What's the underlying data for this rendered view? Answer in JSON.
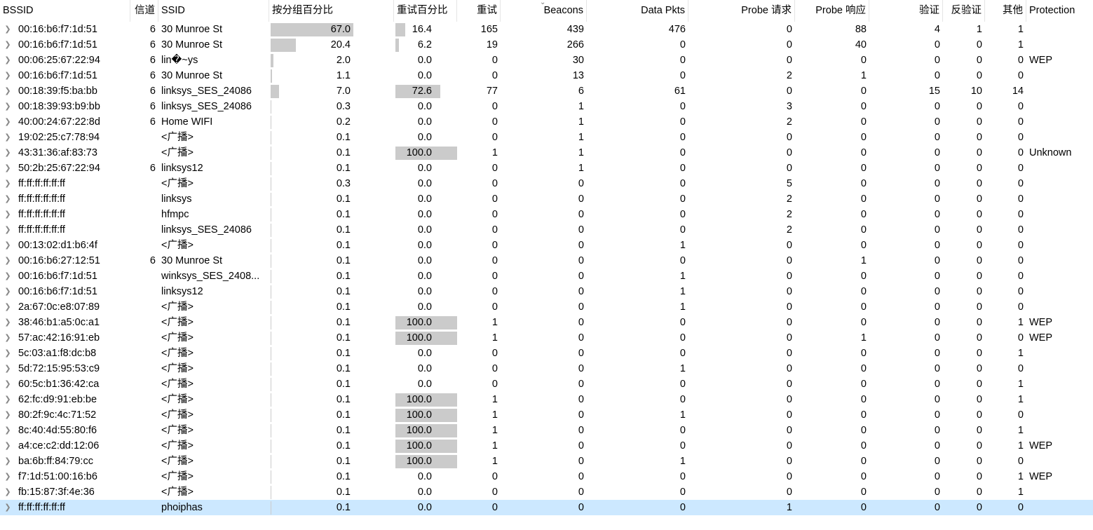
{
  "header": {
    "bssid": "BSSID",
    "channel": "信道",
    "ssid": "SSID",
    "pct_packets": "按分组百分比",
    "pct_retry": "重试百分比",
    "retry": "重试",
    "beacons": "Beacons",
    "data_pkts": "Data Pkts",
    "probe_req": "Probe 请求",
    "probe_resp": "Probe 响应",
    "auth": "验证",
    "deauth": "反验证",
    "other": "其他",
    "protection": "Protection"
  },
  "rows": [
    {
      "bssid": "00:16:b6:f7:1d:51",
      "ch": "6",
      "ssid": "30 Munroe St",
      "pkt": "67.0",
      "retry_pct": "16.4",
      "retry": "165",
      "beacons": "439",
      "data": "476",
      "preq": "0",
      "presp": "88",
      "auth": "4",
      "deauth": "1",
      "other": "1",
      "prot": "",
      "pkt_v": 67.0,
      "retry_v": 16.4
    },
    {
      "bssid": "00:16:b6:f7:1d:51",
      "ch": "6",
      "ssid": "30 Munroe St",
      "pkt": "20.4",
      "retry_pct": "6.2",
      "retry": "19",
      "beacons": "266",
      "data": "0",
      "preq": "0",
      "presp": "40",
      "auth": "0",
      "deauth": "0",
      "other": "1",
      "prot": "",
      "pkt_v": 20.4,
      "retry_v": 6.2
    },
    {
      "bssid": "00:06:25:67:22:94",
      "ch": "6",
      "ssid": "lin�~ys",
      "pkt": "2.0",
      "retry_pct": "0.0",
      "retry": "0",
      "beacons": "30",
      "data": "0",
      "preq": "0",
      "presp": "0",
      "auth": "0",
      "deauth": "0",
      "other": "0",
      "prot": "WEP",
      "pkt_v": 2.0,
      "retry_v": 0
    },
    {
      "bssid": "00:16:b6:f7:1d:51",
      "ch": "6",
      "ssid": "30 Munroe St",
      "pkt": "1.1",
      "retry_pct": "0.0",
      "retry": "0",
      "beacons": "13",
      "data": "0",
      "preq": "2",
      "presp": "1",
      "auth": "0",
      "deauth": "0",
      "other": "0",
      "prot": "",
      "pkt_v": 1.1,
      "retry_v": 0
    },
    {
      "bssid": "00:18:39:f5:ba:bb",
      "ch": "6",
      "ssid": "linksys_SES_24086",
      "pkt": "7.0",
      "retry_pct": "72.6",
      "retry": "77",
      "beacons": "6",
      "data": "61",
      "preq": "0",
      "presp": "0",
      "auth": "15",
      "deauth": "10",
      "other": "14",
      "prot": "",
      "pkt_v": 7.0,
      "retry_v": 72.6
    },
    {
      "bssid": "00:18:39:93:b9:bb",
      "ch": "6",
      "ssid": "linksys_SES_24086",
      "pkt": "0.3",
      "retry_pct": "0.0",
      "retry": "0",
      "beacons": "1",
      "data": "0",
      "preq": "3",
      "presp": "0",
      "auth": "0",
      "deauth": "0",
      "other": "0",
      "prot": "",
      "pkt_v": 0.3,
      "retry_v": 0
    },
    {
      "bssid": "40:00:24:67:22:8d",
      "ch": "6",
      "ssid": "Home WIFI",
      "pkt": "0.2",
      "retry_pct": "0.0",
      "retry": "0",
      "beacons": "1",
      "data": "0",
      "preq": "2",
      "presp": "0",
      "auth": "0",
      "deauth": "0",
      "other": "0",
      "prot": "",
      "pkt_v": 0.2,
      "retry_v": 0
    },
    {
      "bssid": "19:02:25:c7:78:94",
      "ch": "",
      "ssid": "<广播>",
      "pkt": "0.1",
      "retry_pct": "0.0",
      "retry": "0",
      "beacons": "1",
      "data": "0",
      "preq": "0",
      "presp": "0",
      "auth": "0",
      "deauth": "0",
      "other": "0",
      "prot": "",
      "pkt_v": 0.1,
      "retry_v": 0
    },
    {
      "bssid": "43:31:36:af:83:73",
      "ch": "",
      "ssid": "<广播>",
      "pkt": "0.1",
      "retry_pct": "100.0",
      "retry": "1",
      "beacons": "1",
      "data": "0",
      "preq": "0",
      "presp": "0",
      "auth": "0",
      "deauth": "0",
      "other": "0",
      "prot": "Unknown",
      "pkt_v": 0.1,
      "retry_v": 100
    },
    {
      "bssid": "50:2b:25:67:22:94",
      "ch": "6",
      "ssid": "linksys12",
      "pkt": "0.1",
      "retry_pct": "0.0",
      "retry": "0",
      "beacons": "1",
      "data": "0",
      "preq": "0",
      "presp": "0",
      "auth": "0",
      "deauth": "0",
      "other": "0",
      "prot": "",
      "pkt_v": 0.1,
      "retry_v": 0
    },
    {
      "bssid": "ff:ff:ff:ff:ff:ff",
      "ch": "",
      "ssid": "<广播>",
      "pkt": "0.3",
      "retry_pct": "0.0",
      "retry": "0",
      "beacons": "0",
      "data": "0",
      "preq": "5",
      "presp": "0",
      "auth": "0",
      "deauth": "0",
      "other": "0",
      "prot": "",
      "pkt_v": 0.3,
      "retry_v": 0
    },
    {
      "bssid": "ff:ff:ff:ff:ff:ff",
      "ch": "",
      "ssid": "linksys",
      "pkt": "0.1",
      "retry_pct": "0.0",
      "retry": "0",
      "beacons": "0",
      "data": "0",
      "preq": "2",
      "presp": "0",
      "auth": "0",
      "deauth": "0",
      "other": "0",
      "prot": "",
      "pkt_v": 0.1,
      "retry_v": 0
    },
    {
      "bssid": "ff:ff:ff:ff:ff:ff",
      "ch": "",
      "ssid": "hfmpc",
      "pkt": "0.1",
      "retry_pct": "0.0",
      "retry": "0",
      "beacons": "0",
      "data": "0",
      "preq": "2",
      "presp": "0",
      "auth": "0",
      "deauth": "0",
      "other": "0",
      "prot": "",
      "pkt_v": 0.1,
      "retry_v": 0
    },
    {
      "bssid": "ff:ff:ff:ff:ff:ff",
      "ch": "",
      "ssid": "linksys_SES_24086",
      "pkt": "0.1",
      "retry_pct": "0.0",
      "retry": "0",
      "beacons": "0",
      "data": "0",
      "preq": "2",
      "presp": "0",
      "auth": "0",
      "deauth": "0",
      "other": "0",
      "prot": "",
      "pkt_v": 0.1,
      "retry_v": 0
    },
    {
      "bssid": "00:13:02:d1:b6:4f",
      "ch": "",
      "ssid": "<广播>",
      "pkt": "0.1",
      "retry_pct": "0.0",
      "retry": "0",
      "beacons": "0",
      "data": "1",
      "preq": "0",
      "presp": "0",
      "auth": "0",
      "deauth": "0",
      "other": "0",
      "prot": "",
      "pkt_v": 0.1,
      "retry_v": 0
    },
    {
      "bssid": "00:16:b6:27:12:51",
      "ch": "6",
      "ssid": "30 Munroe St",
      "pkt": "0.1",
      "retry_pct": "0.0",
      "retry": "0",
      "beacons": "0",
      "data": "0",
      "preq": "0",
      "presp": "1",
      "auth": "0",
      "deauth": "0",
      "other": "0",
      "prot": "",
      "pkt_v": 0.1,
      "retry_v": 0
    },
    {
      "bssid": "00:16:b6:f7:1d:51",
      "ch": "",
      "ssid": "winksys_SES_2408...",
      "pkt": "0.1",
      "retry_pct": "0.0",
      "retry": "0",
      "beacons": "0",
      "data": "1",
      "preq": "0",
      "presp": "0",
      "auth": "0",
      "deauth": "0",
      "other": "0",
      "prot": "",
      "pkt_v": 0.1,
      "retry_v": 0
    },
    {
      "bssid": "00:16:b6:f7:1d:51",
      "ch": "",
      "ssid": "linksys12",
      "pkt": "0.1",
      "retry_pct": "0.0",
      "retry": "0",
      "beacons": "0",
      "data": "1",
      "preq": "0",
      "presp": "0",
      "auth": "0",
      "deauth": "0",
      "other": "0",
      "prot": "",
      "pkt_v": 0.1,
      "retry_v": 0
    },
    {
      "bssid": "2a:67:0c:e8:07:89",
      "ch": "",
      "ssid": "<广播>",
      "pkt": "0.1",
      "retry_pct": "0.0",
      "retry": "0",
      "beacons": "0",
      "data": "1",
      "preq": "0",
      "presp": "0",
      "auth": "0",
      "deauth": "0",
      "other": "0",
      "prot": "",
      "pkt_v": 0.1,
      "retry_v": 0
    },
    {
      "bssid": "38:46:b1:a5:0c:a1",
      "ch": "",
      "ssid": "<广播>",
      "pkt": "0.1",
      "retry_pct": "100.0",
      "retry": "1",
      "beacons": "0",
      "data": "0",
      "preq": "0",
      "presp": "0",
      "auth": "0",
      "deauth": "0",
      "other": "1",
      "prot": "WEP",
      "pkt_v": 0.1,
      "retry_v": 100
    },
    {
      "bssid": "57:ac:42:16:91:eb",
      "ch": "",
      "ssid": "<广播>",
      "pkt": "0.1",
      "retry_pct": "100.0",
      "retry": "1",
      "beacons": "0",
      "data": "0",
      "preq": "0",
      "presp": "1",
      "auth": "0",
      "deauth": "0",
      "other": "0",
      "prot": "WEP",
      "pkt_v": 0.1,
      "retry_v": 100
    },
    {
      "bssid": "5c:03:a1:f8:dc:b8",
      "ch": "",
      "ssid": "<广播>",
      "pkt": "0.1",
      "retry_pct": "0.0",
      "retry": "0",
      "beacons": "0",
      "data": "0",
      "preq": "0",
      "presp": "0",
      "auth": "0",
      "deauth": "0",
      "other": "1",
      "prot": "",
      "pkt_v": 0.1,
      "retry_v": 0
    },
    {
      "bssid": "5d:72:15:95:53:c9",
      "ch": "",
      "ssid": "<广播>",
      "pkt": "0.1",
      "retry_pct": "0.0",
      "retry": "0",
      "beacons": "0",
      "data": "1",
      "preq": "0",
      "presp": "0",
      "auth": "0",
      "deauth": "0",
      "other": "0",
      "prot": "",
      "pkt_v": 0.1,
      "retry_v": 0
    },
    {
      "bssid": "60:5c:b1:36:42:ca",
      "ch": "",
      "ssid": "<广播>",
      "pkt": "0.1",
      "retry_pct": "0.0",
      "retry": "0",
      "beacons": "0",
      "data": "0",
      "preq": "0",
      "presp": "0",
      "auth": "0",
      "deauth": "0",
      "other": "1",
      "prot": "",
      "pkt_v": 0.1,
      "retry_v": 0
    },
    {
      "bssid": "62:fc:d9:91:eb:be",
      "ch": "",
      "ssid": "<广播>",
      "pkt": "0.1",
      "retry_pct": "100.0",
      "retry": "1",
      "beacons": "0",
      "data": "0",
      "preq": "0",
      "presp": "0",
      "auth": "0",
      "deauth": "0",
      "other": "1",
      "prot": "",
      "pkt_v": 0.1,
      "retry_v": 100
    },
    {
      "bssid": "80:2f:9c:4c:71:52",
      "ch": "",
      "ssid": "<广播>",
      "pkt": "0.1",
      "retry_pct": "100.0",
      "retry": "1",
      "beacons": "0",
      "data": "1",
      "preq": "0",
      "presp": "0",
      "auth": "0",
      "deauth": "0",
      "other": "0",
      "prot": "",
      "pkt_v": 0.1,
      "retry_v": 100
    },
    {
      "bssid": "8c:40:4d:55:80:f6",
      "ch": "",
      "ssid": "<广播>",
      "pkt": "0.1",
      "retry_pct": "100.0",
      "retry": "1",
      "beacons": "0",
      "data": "0",
      "preq": "0",
      "presp": "0",
      "auth": "0",
      "deauth": "0",
      "other": "1",
      "prot": "",
      "pkt_v": 0.1,
      "retry_v": 100
    },
    {
      "bssid": "a4:ce:c2:dd:12:06",
      "ch": "",
      "ssid": "<广播>",
      "pkt": "0.1",
      "retry_pct": "100.0",
      "retry": "1",
      "beacons": "0",
      "data": "0",
      "preq": "0",
      "presp": "0",
      "auth": "0",
      "deauth": "0",
      "other": "1",
      "prot": "WEP",
      "pkt_v": 0.1,
      "retry_v": 100
    },
    {
      "bssid": "ba:6b:ff:84:79:cc",
      "ch": "",
      "ssid": "<广播>",
      "pkt": "0.1",
      "retry_pct": "100.0",
      "retry": "1",
      "beacons": "0",
      "data": "1",
      "preq": "0",
      "presp": "0",
      "auth": "0",
      "deauth": "0",
      "other": "0",
      "prot": "",
      "pkt_v": 0.1,
      "retry_v": 100
    },
    {
      "bssid": "f7:1d:51:00:16:b6",
      "ch": "",
      "ssid": "<广播>",
      "pkt": "0.1",
      "retry_pct": "0.0",
      "retry": "0",
      "beacons": "0",
      "data": "0",
      "preq": "0",
      "presp": "0",
      "auth": "0",
      "deauth": "0",
      "other": "1",
      "prot": "WEP",
      "pkt_v": 0.1,
      "retry_v": 0
    },
    {
      "bssid": "fb:15:87:3f:4e:36",
      "ch": "",
      "ssid": "<广播>",
      "pkt": "0.1",
      "retry_pct": "0.0",
      "retry": "0",
      "beacons": "0",
      "data": "0",
      "preq": "0",
      "presp": "0",
      "auth": "0",
      "deauth": "0",
      "other": "1",
      "prot": "",
      "pkt_v": 0.1,
      "retry_v": 0
    },
    {
      "bssid": "ff:ff:ff:ff:ff:ff",
      "ch": "",
      "ssid": "phoiphas",
      "pkt": "0.1",
      "retry_pct": "0.0",
      "retry": "0",
      "beacons": "0",
      "data": "0",
      "preq": "1",
      "presp": "0",
      "auth": "0",
      "deauth": "0",
      "other": "0",
      "prot": "",
      "pkt_v": 0.1,
      "retry_v": 0,
      "selected": true
    }
  ],
  "colors": {
    "bar": "#cbcbcb",
    "selected_row": "#cce8ff",
    "header_divider": "#e5e5e5",
    "expander": "#888888"
  },
  "icons": {
    "expander": "chevron-right-icon",
    "sort": "sort-descending-icon"
  }
}
